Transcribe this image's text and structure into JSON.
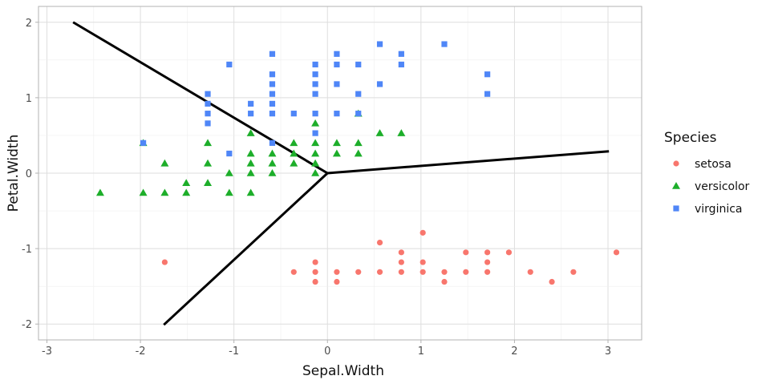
{
  "chart_data": {
    "type": "scatter",
    "xlabel": "Sepal.Width",
    "ylabel": "Petal.Width",
    "xlim": [
      -3.09,
      3.36
    ],
    "ylim": [
      -2.21,
      2.21
    ],
    "xticks": [
      -3,
      -2,
      -1,
      0,
      1,
      2,
      3
    ],
    "yticks": [
      -2,
      -1,
      0,
      1,
      2
    ],
    "grid": true,
    "legend": {
      "title": "Species",
      "placement": "right"
    },
    "series": [
      {
        "name": "setosa",
        "color": "#F8766D",
        "shape": "circle",
        "points": [
          [
            -1.74,
            -1.18
          ],
          [
            -0.36,
            -1.31
          ],
          [
            -0.13,
            -1.18
          ],
          [
            -0.13,
            -1.31
          ],
          [
            -0.13,
            -1.44
          ],
          [
            0.1,
            -1.31
          ],
          [
            0.1,
            -1.44
          ],
          [
            0.33,
            -1.31
          ],
          [
            0.56,
            -0.92
          ],
          [
            0.56,
            -1.31
          ],
          [
            0.79,
            -1.05
          ],
          [
            0.79,
            -1.18
          ],
          [
            0.79,
            -1.31
          ],
          [
            1.02,
            -0.79
          ],
          [
            1.02,
            -1.18
          ],
          [
            1.02,
            -1.31
          ],
          [
            1.25,
            -1.31
          ],
          [
            1.25,
            -1.44
          ],
          [
            1.48,
            -1.05
          ],
          [
            1.48,
            -1.31
          ],
          [
            1.71,
            -1.05
          ],
          [
            1.71,
            -1.18
          ],
          [
            1.71,
            -1.31
          ],
          [
            1.94,
            -1.05
          ],
          [
            2.17,
            -1.31
          ],
          [
            2.4,
            -1.44
          ],
          [
            2.63,
            -1.31
          ],
          [
            3.09,
            -1.05
          ]
        ]
      },
      {
        "name": "versicolor",
        "color": "#1DAE2A",
        "shape": "triangle",
        "points": [
          [
            -0.13,
            0.66
          ],
          [
            -0.82,
            0.53
          ],
          [
            0.56,
            0.53
          ],
          [
            0.79,
            0.53
          ],
          [
            -1.97,
            0.4
          ],
          [
            -1.28,
            0.4
          ],
          [
            -0.36,
            0.4
          ],
          [
            -0.13,
            0.4
          ],
          [
            0.1,
            0.4
          ],
          [
            0.33,
            0.4
          ],
          [
            -0.82,
            0.26
          ],
          [
            -0.59,
            0.26
          ],
          [
            -0.36,
            0.26
          ],
          [
            -0.13,
            0.26
          ],
          [
            0.1,
            0.26
          ],
          [
            0.33,
            0.26
          ],
          [
            -1.74,
            0.13
          ],
          [
            -1.28,
            0.13
          ],
          [
            -0.82,
            0.13
          ],
          [
            -0.59,
            0.13
          ],
          [
            -0.36,
            0.13
          ],
          [
            -0.13,
            0.13
          ],
          [
            -1.05,
            0.0
          ],
          [
            -0.82,
            0.0
          ],
          [
            -0.59,
            0.0
          ],
          [
            -0.13,
            0.0
          ],
          [
            -1.51,
            -0.13
          ],
          [
            -1.28,
            -0.13
          ],
          [
            -2.43,
            -0.26
          ],
          [
            -1.97,
            -0.26
          ],
          [
            -1.74,
            -0.26
          ],
          [
            -1.51,
            -0.26
          ],
          [
            -1.05,
            -0.26
          ],
          [
            -0.82,
            -0.26
          ],
          [
            0.33,
            0.79
          ]
        ]
      },
      {
        "name": "virginica",
        "color": "#4F86F7",
        "shape": "square",
        "points": [
          [
            0.56,
            1.71
          ],
          [
            1.25,
            1.71
          ],
          [
            -0.59,
            1.58
          ],
          [
            0.1,
            1.58
          ],
          [
            0.79,
            1.58
          ],
          [
            -1.05,
            1.44
          ],
          [
            -0.13,
            1.44
          ],
          [
            0.1,
            1.44
          ],
          [
            0.33,
            1.44
          ],
          [
            0.79,
            1.44
          ],
          [
            -0.59,
            1.31
          ],
          [
            -0.13,
            1.31
          ],
          [
            1.71,
            1.31
          ],
          [
            -0.59,
            1.18
          ],
          [
            -0.13,
            1.18
          ],
          [
            0.1,
            1.18
          ],
          [
            0.56,
            1.18
          ],
          [
            -1.28,
            1.05
          ],
          [
            -0.59,
            1.05
          ],
          [
            -0.13,
            1.05
          ],
          [
            0.33,
            1.05
          ],
          [
            1.71,
            1.05
          ],
          [
            -1.28,
            0.92
          ],
          [
            -0.82,
            0.92
          ],
          [
            -0.59,
            0.92
          ],
          [
            -1.28,
            0.79
          ],
          [
            -0.82,
            0.79
          ],
          [
            -0.59,
            0.79
          ],
          [
            -0.36,
            0.79
          ],
          [
            -0.13,
            0.79
          ],
          [
            0.1,
            0.79
          ],
          [
            0.33,
            0.79
          ],
          [
            -1.28,
            0.66
          ],
          [
            -0.13,
            0.53
          ],
          [
            -1.97,
            0.4
          ],
          [
            -0.59,
            0.4
          ],
          [
            -1.05,
            0.26
          ]
        ]
      }
    ],
    "lines": [
      [
        [
          0,
          0
        ],
        [
          -2.72,
          2.0
        ]
      ],
      [
        [
          0,
          0
        ],
        [
          -1.75,
          -2.01
        ]
      ],
      [
        [
          0,
          0
        ],
        [
          3.01,
          0.29
        ]
      ]
    ]
  }
}
